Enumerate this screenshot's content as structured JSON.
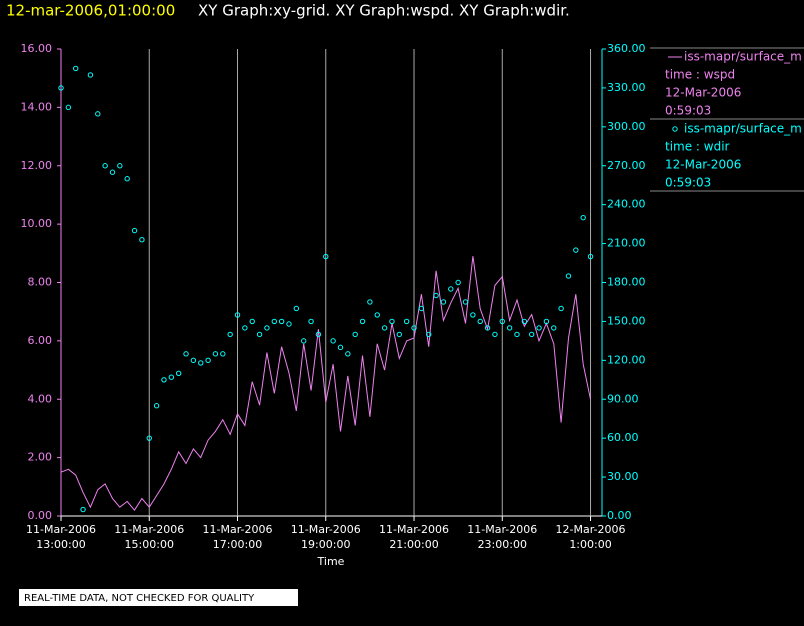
{
  "chart_data": {
    "type": "xy",
    "title_time": "12-mar-2006,01:00:00",
    "title": "XY Graph:xy-grid.  XY Graph:wspd.  XY Graph:wdir.",
    "xlabel": "Time",
    "note": "REAL-TIME DATA, NOT CHECKED FOR QUALITY",
    "x": [
      "2006-03-11 13:00",
      "2006-03-11 13:10",
      "2006-03-11 13:20",
      "2006-03-11 13:30",
      "2006-03-11 13:40",
      "2006-03-11 13:50",
      "2006-03-11 14:00",
      "2006-03-11 14:10",
      "2006-03-11 14:20",
      "2006-03-11 14:30",
      "2006-03-11 14:40",
      "2006-03-11 14:50",
      "2006-03-11 15:00",
      "2006-03-11 15:10",
      "2006-03-11 15:20",
      "2006-03-11 15:30",
      "2006-03-11 15:40",
      "2006-03-11 15:50",
      "2006-03-11 16:00",
      "2006-03-11 16:10",
      "2006-03-11 16:20",
      "2006-03-11 16:30",
      "2006-03-11 16:40",
      "2006-03-11 16:50",
      "2006-03-11 17:00",
      "2006-03-11 17:10",
      "2006-03-11 17:20",
      "2006-03-11 17:30",
      "2006-03-11 17:40",
      "2006-03-11 17:50",
      "2006-03-11 18:00",
      "2006-03-11 18:10",
      "2006-03-11 18:20",
      "2006-03-11 18:30",
      "2006-03-11 18:40",
      "2006-03-11 18:50",
      "2006-03-11 19:00",
      "2006-03-11 19:10",
      "2006-03-11 19:20",
      "2006-03-11 19:30",
      "2006-03-11 19:40",
      "2006-03-11 19:50",
      "2006-03-11 20:00",
      "2006-03-11 20:10",
      "2006-03-11 20:20",
      "2006-03-11 20:30",
      "2006-03-11 20:40",
      "2006-03-11 20:50",
      "2006-03-11 21:00",
      "2006-03-11 21:10",
      "2006-03-11 21:20",
      "2006-03-11 21:30",
      "2006-03-11 21:40",
      "2006-03-11 21:50",
      "2006-03-11 22:00",
      "2006-03-11 22:10",
      "2006-03-11 22:20",
      "2006-03-11 22:30",
      "2006-03-11 22:40",
      "2006-03-11 22:50",
      "2006-03-11 23:00",
      "2006-03-11 23:10",
      "2006-03-11 23:20",
      "2006-03-11 23:30",
      "2006-03-11 23:40",
      "2006-03-11 23:50",
      "2006-03-12 00:00",
      "2006-03-12 00:10",
      "2006-03-12 00:20",
      "2006-03-12 00:30",
      "2006-03-12 00:40",
      "2006-03-12 00:50",
      "2006-03-12 01:00"
    ],
    "xlim": [
      "2006-03-11 13:00",
      "2006-03-12 01:02"
    ],
    "xticks": [
      {
        "value": "2006-03-11 13:00",
        "label": [
          "11-Mar-2006",
          "13:00:00"
        ]
      },
      {
        "value": "2006-03-11 15:00",
        "label": [
          "11-Mar-2006",
          "15:00:00"
        ]
      },
      {
        "value": "2006-03-11 17:00",
        "label": [
          "11-Mar-2006",
          "17:00:00"
        ]
      },
      {
        "value": "2006-03-11 19:00",
        "label": [
          "11-Mar-2006",
          "19:00:00"
        ]
      },
      {
        "value": "2006-03-11 21:00",
        "label": [
          "11-Mar-2006",
          "21:00:00"
        ]
      },
      {
        "value": "2006-03-11 23:00",
        "label": [
          "11-Mar-2006",
          "23:00:00"
        ]
      },
      {
        "value": "2006-03-12 01:00",
        "label": [
          "12-Mar-2006",
          "1:00:00"
        ]
      }
    ],
    "ylim": [
      0,
      16
    ],
    "yticks": [
      {
        "value": 0,
        "label": "0.00"
      },
      {
        "value": 2,
        "label": "2.00"
      },
      {
        "value": 4,
        "label": "4.00"
      },
      {
        "value": 6,
        "label": "6.00"
      },
      {
        "value": 8,
        "label": "8.00"
      },
      {
        "value": 10,
        "label": "10.00"
      },
      {
        "value": 12,
        "label": "12.00"
      },
      {
        "value": 14,
        "label": "14.00"
      },
      {
        "value": 16,
        "label": "16.00"
      }
    ],
    "y2lim": [
      0,
      360
    ],
    "y2ticks": [
      {
        "value": 0,
        "label": "0.00"
      },
      {
        "value": 30,
        "label": "30.00"
      },
      {
        "value": 60,
        "label": "60.00"
      },
      {
        "value": 90,
        "label": "90.00"
      },
      {
        "value": 120,
        "label": "120.00"
      },
      {
        "value": 150,
        "label": "150.00"
      },
      {
        "value": 180,
        "label": "180.00"
      },
      {
        "value": 210,
        "label": "210.00"
      },
      {
        "value": 240,
        "label": "240.00"
      },
      {
        "value": 270,
        "label": "270.00"
      },
      {
        "value": 300,
        "label": "300.00"
      },
      {
        "value": 330,
        "label": "330.00"
      },
      {
        "value": 360,
        "label": "360.00"
      }
    ],
    "grid": true,
    "series": [
      {
        "name": "iss-mapr/surface_m",
        "legend_lines": [
          "time : wspd",
          "12-Mar-2006",
          "0:59:03"
        ],
        "color": "#ee82ee",
        "axis": "y",
        "style": "line",
        "values": [
          1.5,
          1.6,
          1.4,
          0.8,
          0.3,
          0.9,
          1.1,
          0.6,
          0.3,
          0.5,
          0.2,
          0.6,
          0.3,
          0.7,
          1.1,
          1.6,
          2.2,
          1.8,
          2.3,
          2.0,
          2.6,
          2.9,
          3.3,
          2.8,
          3.5,
          3.1,
          4.6,
          3.8,
          5.6,
          4.2,
          5.8,
          4.9,
          3.6,
          5.9,
          4.3,
          6.4,
          3.9,
          5.2,
          2.9,
          4.8,
          3.1,
          5.5,
          3.4,
          5.9,
          5.0,
          6.6,
          5.4,
          6.0,
          6.1,
          7.6,
          5.8,
          8.4,
          6.7,
          7.3,
          7.8,
          6.6,
          8.9,
          7.1,
          6.4,
          7.9,
          8.2,
          6.7,
          7.4,
          6.5,
          6.9,
          6.0,
          6.6,
          5.9,
          3.2,
          6.1,
          7.6,
          5.2,
          4.0
        ]
      },
      {
        "name": "iss-mapr/surface_m",
        "legend_lines": [
          "time : wdir",
          "12-Mar-2006",
          "0:59:03"
        ],
        "color": "#00ffff",
        "axis": "y2",
        "style": "points",
        "values": [
          330,
          315,
          345,
          5,
          340,
          310,
          270,
          265,
          270,
          260,
          220,
          213,
          60,
          85,
          105,
          107,
          110,
          125,
          120,
          118,
          120,
          125,
          125,
          140,
          155,
          145,
          150,
          140,
          145,
          150,
          150,
          148,
          160,
          135,
          150,
          140,
          200,
          135,
          130,
          125,
          140,
          150,
          165,
          155,
          145,
          150,
          140,
          150,
          145,
          160,
          140,
          170,
          165,
          175,
          180,
          165,
          155,
          150,
          145,
          140,
          150,
          145,
          140,
          150,
          140,
          145,
          150,
          145,
          160,
          185,
          205,
          230,
          200
        ]
      }
    ]
  }
}
